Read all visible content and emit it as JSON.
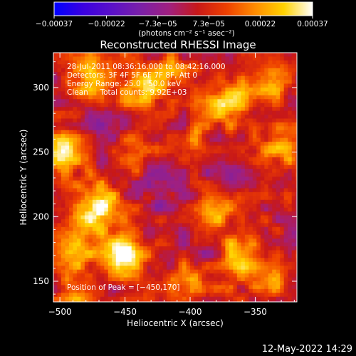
{
  "chart_data": {
    "type": "heatmap",
    "title": "Reconstructed RHESSI Image",
    "xlabel": "Heliocentric X (arcsec)",
    "ylabel": "Heliocentric Y (arcsec)",
    "xlim": [
      -505,
      -318
    ],
    "ylim": [
      134,
      327
    ],
    "x_ticks": [
      -500,
      -450,
      -400,
      -350
    ],
    "y_ticks": [
      150,
      200,
      250,
      300
    ],
    "x_tick_labels": [
      "−500",
      "−450",
      "−400",
      "−350"
    ],
    "y_tick_labels": [
      "150",
      "200",
      "250",
      "300"
    ],
    "annotations": [
      "28-Jul-2011 08:36:16.000 to 08:42:16.000",
      "Detectors: 3F 4F 5F 6F 7F 8F, Att 0",
      "Energy Range: 25.0 - 50.0 keV",
      "Clean     Total counts: 9.92E+03"
    ],
    "peak_label": "Position of Peak = [−450,170]",
    "peak_position": [
      -450,
      170
    ],
    "colorbar": {
      "range": [
        -0.00037,
        0.00037
      ],
      "ticks": [
        -0.00037,
        -0.00022,
        -7.3e-05,
        7.3e-05,
        0.00022,
        0.00037
      ],
      "tick_labels": [
        "−0.00037",
        "−0.00022",
        "−7.3e−05",
        "7.3e−05",
        "0.00022",
        "0.00037"
      ],
      "unit": "(photons cm⁻² s⁻¹ asec⁻²)",
      "colors": [
        "#0000ff",
        "#3a00e0",
        "#5a10c8",
        "#7a20a8",
        "#a02080",
        "#c81818",
        "#ee4000",
        "#ff8c00",
        "#ffd200",
        "#ffffff"
      ]
    },
    "sources": [
      {
        "x": -450,
        "y": 170,
        "sigma": 11,
        "amp": 0.00037
      },
      {
        "x": -472,
        "y": 208,
        "sigma": 13,
        "amp": 0.00033
      },
      {
        "x": -498,
        "y": 250,
        "sigma": 10,
        "amp": 0.00033
      },
      {
        "x": -488,
        "y": 175,
        "sigma": 12,
        "amp": 0.00022
      },
      {
        "x": -475,
        "y": 310,
        "sigma": 12,
        "amp": 0.00024
      },
      {
        "x": -440,
        "y": 298,
        "sigma": 10,
        "amp": 0.00022
      },
      {
        "x": -418,
        "y": 310,
        "sigma": 10,
        "amp": 0.00023
      },
      {
        "x": -370,
        "y": 288,
        "sigma": 12,
        "amp": 0.00025
      },
      {
        "x": -338,
        "y": 305,
        "sigma": 10,
        "amp": 0.0002
      },
      {
        "x": -330,
        "y": 255,
        "sigma": 11,
        "amp": 0.00021
      },
      {
        "x": -380,
        "y": 205,
        "sigma": 11,
        "amp": 0.00018
      },
      {
        "x": -362,
        "y": 170,
        "sigma": 12,
        "amp": 0.00022
      },
      {
        "x": -340,
        "y": 150,
        "sigma": 10,
        "amp": 0.00017
      },
      {
        "x": -400,
        "y": 150,
        "sigma": 12,
        "amp": 0.00014
      },
      {
        "x": -485,
        "y": 140,
        "sigma": 10,
        "amp": 0.00016
      },
      {
        "x": -440,
        "y": 250,
        "sigma": 10,
        "amp": 0.00012
      },
      {
        "x": -395,
        "y": 260,
        "sigma": 8,
        "amp": 0.00012
      },
      {
        "x": -430,
        "y": 145,
        "sigma": 8,
        "amp": 0.00012
      },
      {
        "x": -420,
        "y": 220,
        "sigma": 14,
        "amp": -0.0001
      },
      {
        "x": -370,
        "y": 235,
        "sigma": 12,
        "amp": -0.00011
      },
      {
        "x": -470,
        "y": 275,
        "sigma": 10,
        "amp": -8e-05
      },
      {
        "x": -390,
        "y": 175,
        "sigma": 10,
        "amp": -0.0001
      }
    ]
  },
  "footer": {
    "timestamp": "12-May-2022 14:29"
  }
}
